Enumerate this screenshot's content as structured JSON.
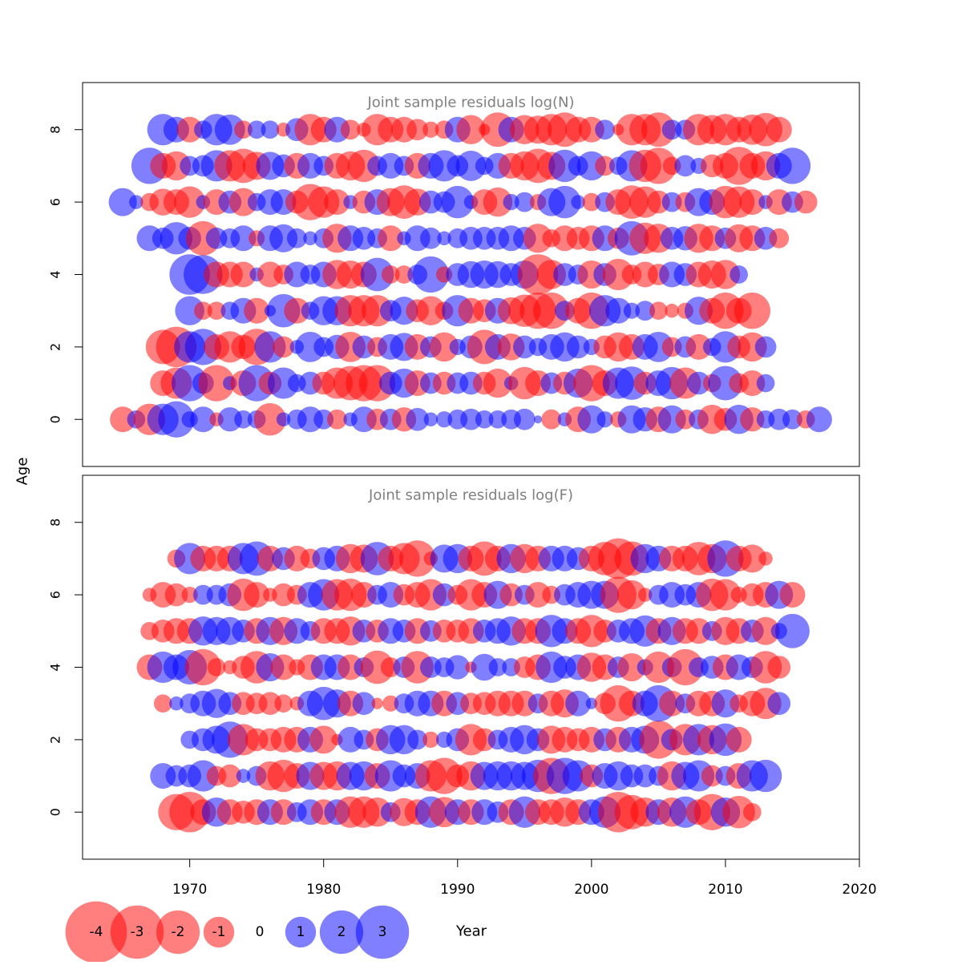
{
  "chart_data": [
    {
      "type": "scatter",
      "subtype": "bubble",
      "title": "Joint sample residuals log(N)",
      "ylabel": "Age",
      "ages": [
        0,
        1,
        2,
        3,
        4,
        5,
        6,
        7,
        8
      ],
      "year_start": 1965,
      "year_end": 2017,
      "xlim": [
        1962,
        2020
      ],
      "ylim": [
        -1.3,
        9.3
      ],
      "y_ticks": [
        0,
        2,
        4,
        6,
        8
      ],
      "residual_rows": [
        [
          -1.0,
          0.5,
          -1.5,
          1.5,
          2.0,
          0.4,
          1.0,
          -0.3,
          0.9,
          0.5,
          0.5,
          -1.6,
          0.3,
          0.6,
          1.0,
          0.6,
          -0.6,
          0.3,
          1.0,
          -0.7,
          0.7,
          -0.9,
          0.8,
          0.3,
          0.4,
          0.6,
          0.7,
          0.5,
          0.5,
          0.6,
          0.7,
          0.1,
          -0.6,
          0.3,
          -1.0,
          1.2,
          0.4,
          -0.4,
          1.2,
          0.9,
          -1.0,
          1.2,
          -0.6,
          0.6,
          -1.3,
          -0.8,
          1.3,
          -0.9,
          0.5,
          0.7,
          0.6,
          -0.5,
          1.0
        ],
        [
          -1.0,
          -1.5,
          2.0,
          0.7,
          -2.0,
          0.3,
          -1.0,
          2.0,
          -0.8,
          1.5,
          0.5,
          0.8,
          -0.8,
          -1.5,
          -1.8,
          -2.0,
          -2.0,
          0.8,
          1.3,
          -1.0,
          0.7,
          -0.8,
          0.7,
          0.8,
          -0.8,
          -1.3,
          0.3,
          -1.6,
          -1.0,
          0.7,
          -0.8,
          1.3,
          -2.0,
          -1.0,
          1.5,
          1.7,
          -0.8,
          1.0,
          1.6,
          -1.5,
          0.8,
          -0.5,
          1.8,
          -0.6,
          -1.0,
          0.5
        ],
        [
          -1.8,
          -2.5,
          1.5,
          2.0,
          -1.0,
          -1.5,
          -0.9,
          -2.0,
          1.5,
          -0.7,
          0.3,
          1.4,
          0.6,
          0.9,
          -1.4,
          0.8,
          -0.6,
          1.0,
          1.2,
          -1.0,
          0.7,
          -1.3,
          0.4,
          0.8,
          -1.8,
          1.0,
          -1.1,
          0.8,
          0.5,
          1.0,
          1.3,
          0.8,
          0.4,
          -0.8,
          -1.3,
          -1.0,
          1.0,
          1.4,
          -0.6,
          0.7,
          -1.0,
          0.5,
          1.5,
          -0.8,
          -1.3,
          0.7
        ],
        [
          1.3,
          -0.5,
          -0.5,
          0.5,
          1.0,
          -1.0,
          0.2,
          1.7,
          -1.0,
          0.5,
          1.3,
          1.3,
          -1.5,
          -1.5,
          -1.5,
          0.7,
          1.2,
          -0.8,
          -1.3,
          -0.5,
          1.5,
          -1.0,
          -0.8,
          1.0,
          -1.1,
          -1.6,
          -2.0,
          -2.0,
          0.6,
          -1.0,
          -2.0,
          1.5,
          1.0,
          0.4,
          0.6,
          -0.5,
          -0.3,
          -0.4,
          1.2,
          -1.0,
          -2.0,
          -1.0,
          -2.0
        ],
        [
          2.5,
          2.3,
          -1.0,
          -1.0,
          -1.0,
          0.3,
          -1.0,
          -0.6,
          1.0,
          0.6,
          1.0,
          -1.3,
          -1.2,
          -1.0,
          1.7,
          -0.5,
          -0.5,
          0.6,
          2.0,
          -0.4,
          0.8,
          1.1,
          1.2,
          1.1,
          0.8,
          1.2,
          -2.5,
          -1.3,
          0.8,
          0.6,
          -1.2,
          0.8,
          -1.5,
          -0.6,
          -1.0,
          -0.7,
          1.0,
          0.8,
          -1.0,
          -1.2,
          -1.3,
          0.5
        ],
        [
          1.0,
          0.7,
          1.6,
          0.8,
          -1.8,
          0.7,
          0.6,
          1.0,
          -0.4,
          1.0,
          1.2,
          0.6,
          0.3,
          0.6,
          -1.3,
          1.0,
          0.8,
          0.6,
          -1.0,
          0.3,
          1.0,
          0.7,
          0.3,
          0.6,
          0.8,
          0.8,
          0.8,
          1.0,
          0.8,
          -1.3,
          -0.5,
          -1.0,
          -0.8,
          -1.0,
          1.0,
          -0.7,
          1.8,
          -1.5,
          -1.3,
          0.8,
          0.9,
          -1.3,
          -1.0,
          0.7,
          -1.2,
          -1.0,
          0.8,
          -0.6
        ],
        [
          1.2,
          0.3,
          -0.5,
          -1.1,
          -1.0,
          -1.5,
          0.3,
          -1.0,
          0.8,
          -1.2,
          0.5,
          1.0,
          1.0,
          -0.8,
          -2.0,
          -1.5,
          -1.0,
          0.3,
          -0.8,
          1.0,
          -1.2,
          -1.7,
          -1.1,
          0.8,
          0.7,
          1.6,
          0.3,
          -1.0,
          -1.3,
          0.4,
          0.6,
          -0.4,
          1.2,
          1.6,
          0.3,
          -0.5,
          0.6,
          -1.0,
          -1.7,
          -1.5,
          -0.8,
          0.6,
          -0.6,
          1.2,
          1.0,
          -1.6,
          -1.5,
          -1.0,
          0.3,
          -1.0,
          0.7,
          -0.8
        ],
        [
          2.0,
          -1.0,
          -1.3,
          0.6,
          0.7,
          1.5,
          -1.5,
          -1.8,
          -1.2,
          1.2,
          0.8,
          -1.0,
          1.0,
          0.6,
          -1.0,
          -1.3,
          -1.6,
          0.6,
          1.0,
          0.6,
          -1.0,
          1.0,
          1.5,
          0.7,
          1.4,
          0.5,
          1.0,
          -1.0,
          -1.3,
          -1.8,
          -1.2,
          1.6,
          0.6,
          1.3,
          -0.6,
          0.5,
          1.5,
          -1.6,
          -2.0,
          -0.5,
          0.7,
          0.4,
          -0.8,
          -1.0,
          -2.2,
          -1.0,
          -1.3,
          1.0,
          2.0
        ],
        [
          1.5,
          1.0,
          -1.0,
          0.5,
          1.5,
          1.4,
          -0.5,
          0.5,
          0.5,
          -0.3,
          0.8,
          -1.5,
          -1.0,
          1.0,
          -0.6,
          -0.3,
          -1.5,
          -1.0,
          -1.0,
          -0.7,
          -0.4,
          -0.5,
          1.0,
          -1.3,
          -0.2,
          -1.8,
          1.0,
          -1.3,
          -1.2,
          -1.5,
          -1.8,
          -1.0,
          -1.0,
          0.6,
          -0.2,
          -1.5,
          -1.5,
          -1.8,
          0.6,
          0.6,
          -1.5,
          -1.3,
          -1.5,
          -1.0,
          -1.4,
          -1.7,
          -1.0
        ]
      ]
    },
    {
      "type": "scatter",
      "subtype": "bubble",
      "title": "Joint sample residuals log(F)",
      "ylabel": "Age",
      "ages": [
        0,
        1,
        2,
        3,
        4,
        5,
        6,
        7
      ],
      "year_start": 1965,
      "year_end": 2017,
      "xlim": [
        1962,
        2020
      ],
      "ylim": [
        -1.3,
        9.3
      ],
      "y_ticks": [
        0,
        2,
        4,
        6,
        8
      ],
      "residual_rows": [
        [
          -2.0,
          -2.5,
          -1.0,
          1.3,
          -1.0,
          -0.8,
          -1.0,
          1.0,
          -1.0,
          0.6,
          1.0,
          -1.0,
          1.0,
          -1.5,
          -1.5,
          -1.3,
          0.6,
          -1.2,
          -1.0,
          1.5,
          -1.4,
          1.0,
          -1.0,
          1.0,
          0.7,
          -1.0,
          1.5,
          -1.0,
          -1.0,
          -1.3,
          -1.0,
          1.0,
          1.5,
          -2.5,
          -1.8,
          -1.3,
          1.0,
          -1.3,
          1.5,
          -1.0,
          -2.0,
          1.3,
          -1.6,
          -0.5
        ],
        [
          1.0,
          0.7,
          0.8,
          1.5,
          -0.6,
          -0.8,
          0.3,
          0.6,
          -1.3,
          -1.6,
          -1.0,
          1.2,
          -1.2,
          -1.3,
          1.2,
          1.3,
          -1.0,
          1.5,
          0.8,
          1.0,
          -1.5,
          -2.0,
          -0.8,
          -1.3,
          1.2,
          1.3,
          1.3,
          1.2,
          1.6,
          -2.0,
          2.0,
          1.5,
          -0.8,
          1.0,
          1.3,
          0.8,
          0.8,
          0.6,
          -1.3,
          1.2,
          1.5,
          -0.7,
          0.6,
          -1.0,
          1.5,
          1.6
        ],
        [
          0.5,
          0.8,
          1.2,
          2.0,
          -1.5,
          -0.8,
          -0.8,
          -1.0,
          -1.0,
          1.0,
          -1.2,
          -0.2,
          1.0,
          0.6,
          -0.8,
          1.3,
          1.3,
          0.6,
          -0.4,
          0.4,
          0.8,
          -1.5,
          -0.8,
          0.6,
          1.0,
          1.3,
          0.8,
          -1.2,
          -1.0,
          -0.8,
          -1.0,
          0.8,
          -1.0,
          1.0,
          1.2,
          -2.2,
          0.7,
          -1.5,
          1.5,
          -1.3,
          1.6,
          -1.0
        ],
        [
          -0.5,
          0.3,
          0.6,
          1.0,
          1.3,
          0.8,
          -0.8,
          -0.7,
          -0.8,
          -0.5,
          -0.3,
          1.0,
          1.7,
          1.2,
          -1.0,
          0.8,
          -0.2,
          -0.4,
          0.6,
          1.0,
          1.0,
          -1.0,
          0.8,
          -0.7,
          -0.8,
          -1.0,
          -1.0,
          -1.0,
          0.6,
          -1.0,
          -1.2,
          1.0,
          0.2,
          -0.7,
          -2.0,
          -1.0,
          1.0,
          2.0,
          -1.0,
          0.6,
          -1.0,
          -1.0,
          1.2,
          -0.5,
          -1.0,
          -1.5,
          0.8
        ],
        [
          -1.0,
          1.5,
          1.0,
          1.8,
          -2.0,
          -0.5,
          -0.3,
          -0.8,
          -1.6,
          1.2,
          -1.0,
          -0.4,
          -1.0,
          1.0,
          1.0,
          -1.0,
          0.6,
          -1.7,
          -0.6,
          0.7,
          -1.6,
          0.7,
          0.6,
          0.9,
          -0.2,
          1.1,
          0.5,
          0.5,
          -0.7,
          -1.0,
          1.5,
          0.8,
          1.0,
          -1.3,
          -1.0,
          0.7,
          -1.2,
          0.4,
          -1.5,
          0.6,
          -2.0,
          0.6,
          0.8,
          -1.0,
          1.0,
          0.7,
          -1.6,
          -0.8
        ],
        [
          -0.5,
          -0.8,
          -1.0,
          -1.0,
          1.3,
          1.2,
          1.2,
          0.8,
          -1.0,
          1.2,
          -1.2,
          1.0,
          0.6,
          -1.0,
          -1.0,
          -1.3,
          0.8,
          -0.8,
          1.0,
          0.8,
          -1.0,
          0.7,
          -0.8,
          -0.8,
          -1.0,
          0.8,
          1.0,
          1.3,
          -1.0,
          -1.0,
          1.6,
          1.0,
          -1.0,
          -1.6,
          -0.8,
          0.8,
          1.0,
          1.5,
          -1.0,
          1.2,
          -1.0,
          -1.0,
          0.6,
          -1.2,
          -1.0,
          0.8,
          -1.2,
          0.4,
          1.8
        ],
        [
          -0.3,
          -1.0,
          -0.8,
          -0.4,
          0.6,
          0.6,
          0.8,
          -1.6,
          -1.0,
          -0.3,
          -0.8,
          -0.6,
          1.0,
          1.5,
          -1.5,
          -1.6,
          -1.0,
          0.6,
          1.0,
          -0.7,
          -1.0,
          -1.5,
          0.8,
          -0.6,
          -1.5,
          -1.0,
          1.2,
          -0.8,
          0.6,
          -1.0,
          -0.5,
          0.7,
          1.0,
          1.2,
          1.2,
          -2.0,
          -1.3,
          -0.3,
          0.6,
          1.0,
          0.7,
          1.0,
          -1.6,
          -1.5,
          -0.4,
          -0.8,
          -1.0,
          1.2,
          -1.0
        ],
        [
          -0.5,
          1.5,
          -1.0,
          -1.0,
          -1.0,
          1.5,
          1.8,
          -1.0,
          0.8,
          -1.0,
          -0.6,
          0.8,
          1.0,
          -1.3,
          -1.2,
          1.7,
          -1.0,
          -1.5,
          -2.0,
          -0.3,
          1.2,
          1.3,
          -1.0,
          -1.8,
          -1.0,
          1.3,
          -1.3,
          -1.0,
          1.0,
          1.0,
          0.8,
          -1.0,
          -1.7,
          -2.5,
          -1.8,
          1.3,
          1.0,
          -1.0,
          -1.0,
          -1.7,
          -1.3,
          2.0,
          -1.0,
          -1.2,
          -0.3
        ]
      ]
    }
  ],
  "xaxis": {
    "label": "Year",
    "ticks": [
      1970,
      1980,
      1990,
      2000,
      2010,
      2020
    ]
  },
  "legend": {
    "values": [
      -4,
      -3,
      -2,
      -1,
      0,
      1,
      2,
      3
    ],
    "labels": [
      "-4",
      "-3",
      "-2",
      "-1",
      "0",
      "1",
      "2",
      "3"
    ]
  },
  "colors": {
    "negative": "#ff0000",
    "positive": "#0000ff",
    "bubble_opacity": 0.5,
    "title_text": "#808080",
    "axis": "#000000"
  }
}
